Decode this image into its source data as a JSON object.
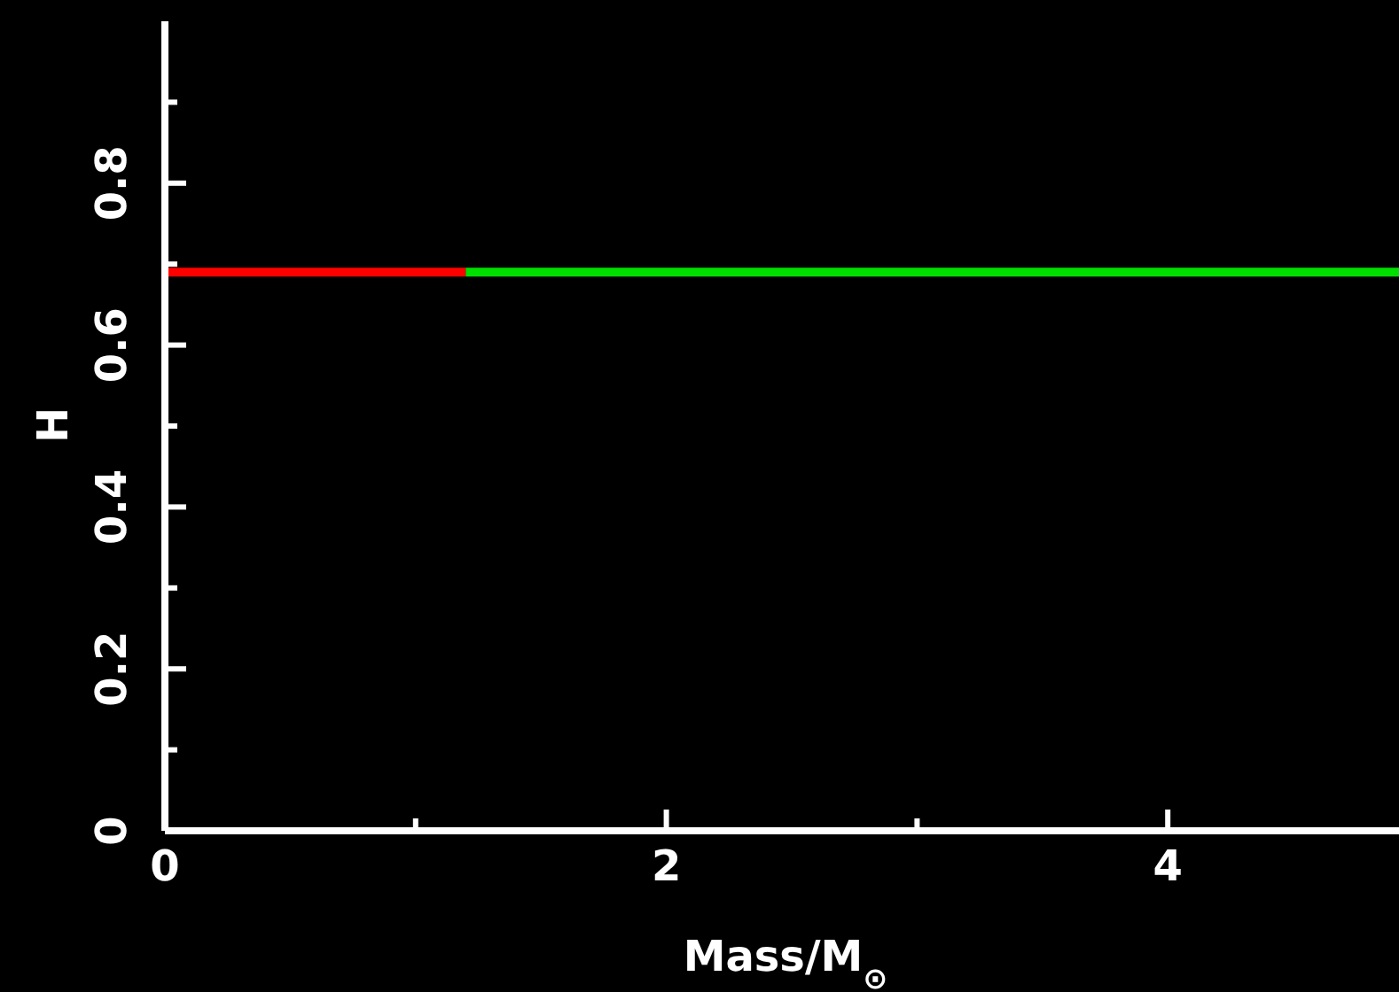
{
  "chart_data": {
    "type": "line",
    "xlabel": "Mass/M$_{⊙}$",
    "ylabel": "H",
    "xlim": [
      0,
      5
    ],
    "xticks": [
      0,
      {
        "value": 1,
        "label": null
      },
      2,
      {
        "value": 3,
        "label": null
      },
      4,
      {
        "value": 5,
        "label": null
      }
    ],
    "ylim": [
      0,
      1
    ],
    "yticks": [
      0,
      {
        "value": 0.1,
        "label": null
      },
      0.2,
      {
        "value": 0.3,
        "label": null
      },
      0.4,
      {
        "value": 0.5,
        "label": null
      },
      0.6,
      {
        "value": 0.7,
        "label": null
      },
      0.8,
      {
        "value": 0.9,
        "label": null
      }
    ],
    "grid": false,
    "marker": "none",
    "line_style": "solid",
    "series": [
      {
        "color": "#ff0000",
        "x": [
          0,
          1.2
        ],
        "values": [
          0.69,
          0.69
        ]
      },
      {
        "color": "#00e000",
        "x": [
          1.2,
          5
        ],
        "values": [
          0.69,
          0.69
        ]
      }
    ]
  }
}
